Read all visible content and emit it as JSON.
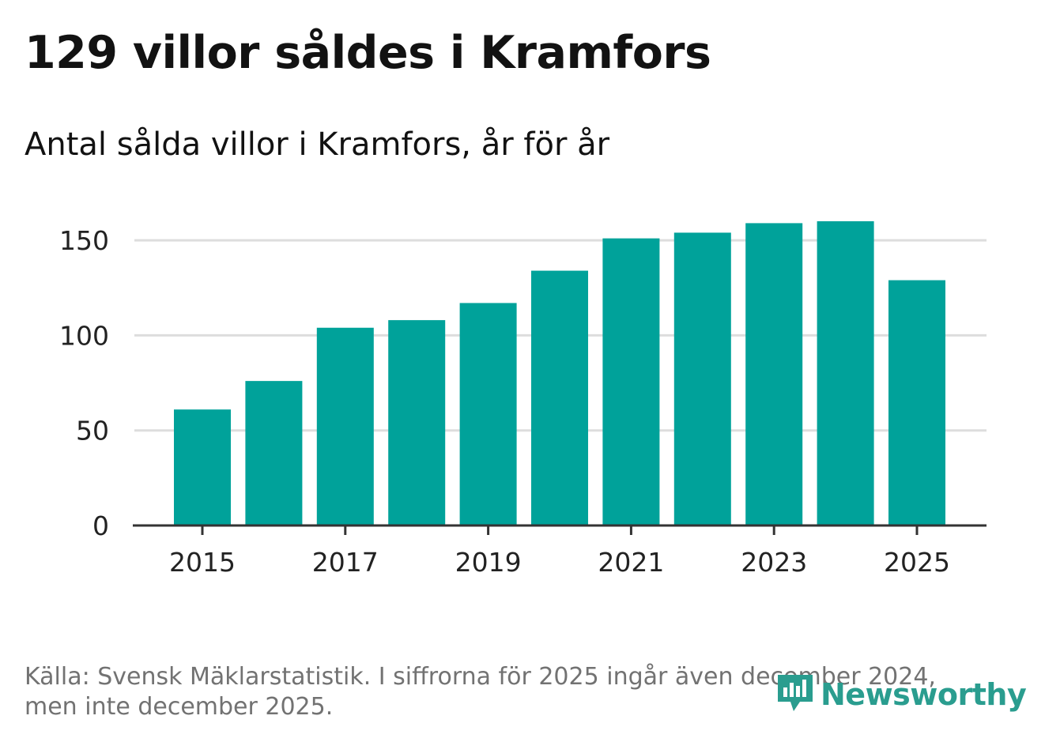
{
  "header": {
    "title": "129 villor såldes i Kramfors",
    "subtitle": "Antal sålda villor i Kramfors, år för år"
  },
  "footer": {
    "source_line1": "Källa: Svensk Mäklarstatistik. I siffrorna för 2025 ingår även december 2024,",
    "source_line2": "men inte december 2025."
  },
  "logo": {
    "text": "Newsworthy",
    "icon": "newsworthy-chart-icon"
  },
  "colors": {
    "bar": "#00a29a",
    "grid": "#dddddd",
    "axis": "#333333",
    "logo": "#2a9d8f"
  },
  "chart_data": {
    "type": "bar",
    "title": "129 villor såldes i Kramfors",
    "subtitle": "Antal sålda villor i Kramfors, år för år",
    "xlabel": "",
    "ylabel": "",
    "categories": [
      "2015",
      "2016",
      "2017",
      "2018",
      "2019",
      "2020",
      "2021",
      "2022",
      "2023",
      "2024",
      "2025"
    ],
    "values": [
      61,
      76,
      104,
      108,
      117,
      134,
      151,
      154,
      159,
      160,
      129
    ],
    "x_tick_labels": [
      "2015",
      "2017",
      "2019",
      "2021",
      "2023",
      "2025"
    ],
    "y_ticks": [
      0,
      50,
      100,
      150
    ],
    "ylim": [
      0,
      160
    ],
    "grid": true,
    "legend": "none"
  }
}
